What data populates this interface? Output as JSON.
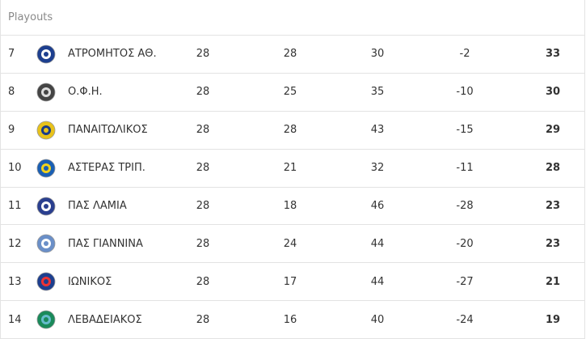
{
  "header": {
    "title": "Playouts"
  },
  "table": {
    "rows": [
      [
        7,
        "ΑΤΡΟΜΗΤΟΣ ΑΘ.",
        28,
        28,
        30,
        -2,
        33
      ],
      [
        8,
        "Ο.Φ.Η.",
        28,
        25,
        35,
        -10,
        30
      ],
      [
        9,
        "ΠΑΝΑΙΤΩΛΙΚΟΣ",
        28,
        28,
        43,
        -15,
        29
      ],
      [
        10,
        "ΑΣΤΕΡΑΣ ΤΡΙΠ.",
        28,
        21,
        32,
        -11,
        28
      ],
      [
        11,
        "ΠΑΣ ΛΑΜΙΑ",
        28,
        18,
        46,
        -28,
        23
      ],
      [
        12,
        "ΠΑΣ ΓΙΑΝΝΙΝΑ",
        28,
        24,
        44,
        -20,
        23
      ],
      [
        13,
        "ΙΩΝΙΚΟΣ",
        28,
        17,
        44,
        -27,
        21
      ],
      [
        14,
        "ΛΕΒΑΔΕΙΑΚΟΣ",
        28,
        16,
        40,
        -24,
        19
      ]
    ]
  }
}
